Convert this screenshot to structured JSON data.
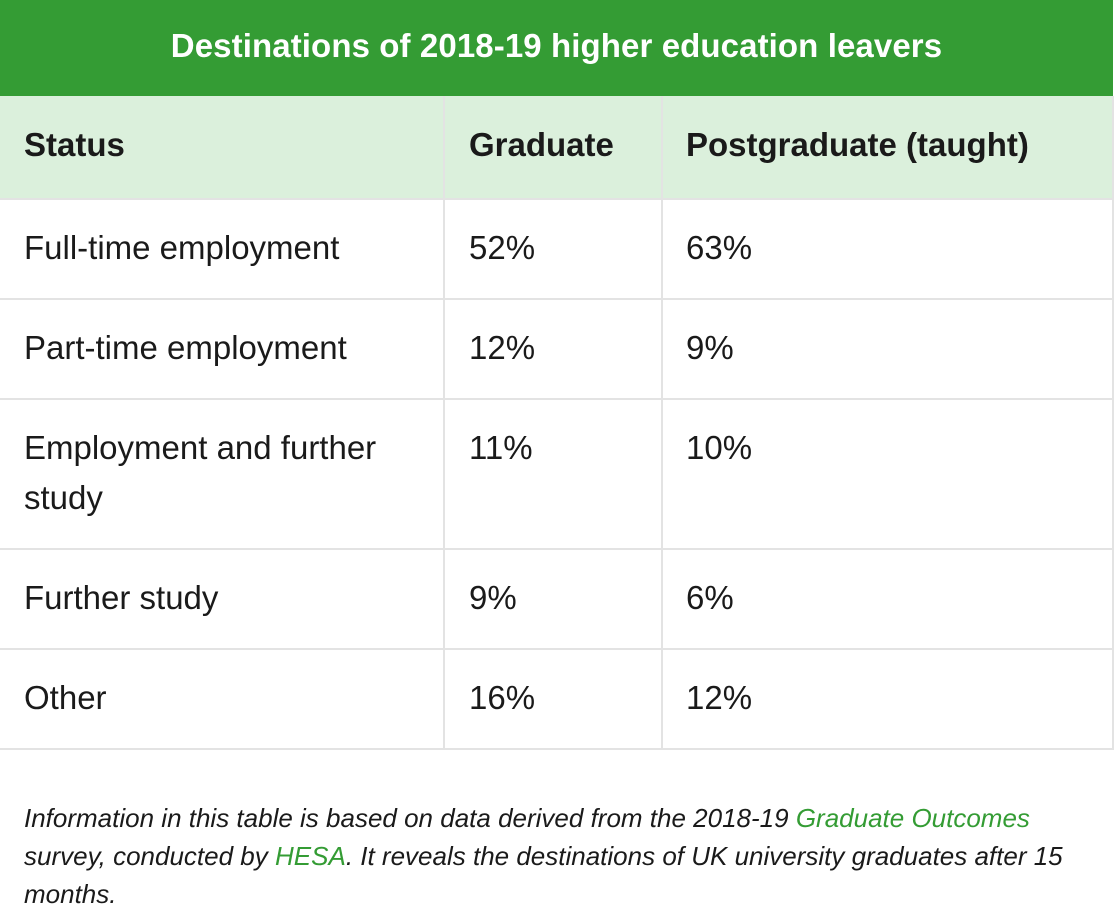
{
  "table": {
    "title": "Destinations of 2018-19 higher education leavers",
    "headers": [
      "Status",
      "Graduate",
      "Postgraduate (taught)"
    ],
    "rows": [
      {
        "status": "Full-time employment",
        "graduate": "52%",
        "postgraduate": "63%"
      },
      {
        "status": "Part-time employment",
        "graduate": "12%",
        "postgraduate": "9%"
      },
      {
        "status": "Employment and further study",
        "graduate": "11%",
        "postgraduate": "10%"
      },
      {
        "status": "Further study",
        "graduate": "9%",
        "postgraduate": "6%"
      },
      {
        "status": "Other",
        "graduate": "16%",
        "postgraduate": "12%"
      }
    ]
  },
  "note": {
    "text_1": "Information in this table is based on data derived from the 2018-19 ",
    "link_1": "Graduate Outcomes",
    "text_2": " survey, conducted by ",
    "link_2": "HESA",
    "text_3": ". It reveals the destinations of UK university graduates after 15 months."
  },
  "colors": {
    "title_background": "#349c34",
    "header_background": "#dbf0dc",
    "link": "#349c34",
    "border": "#e3e3e3"
  }
}
